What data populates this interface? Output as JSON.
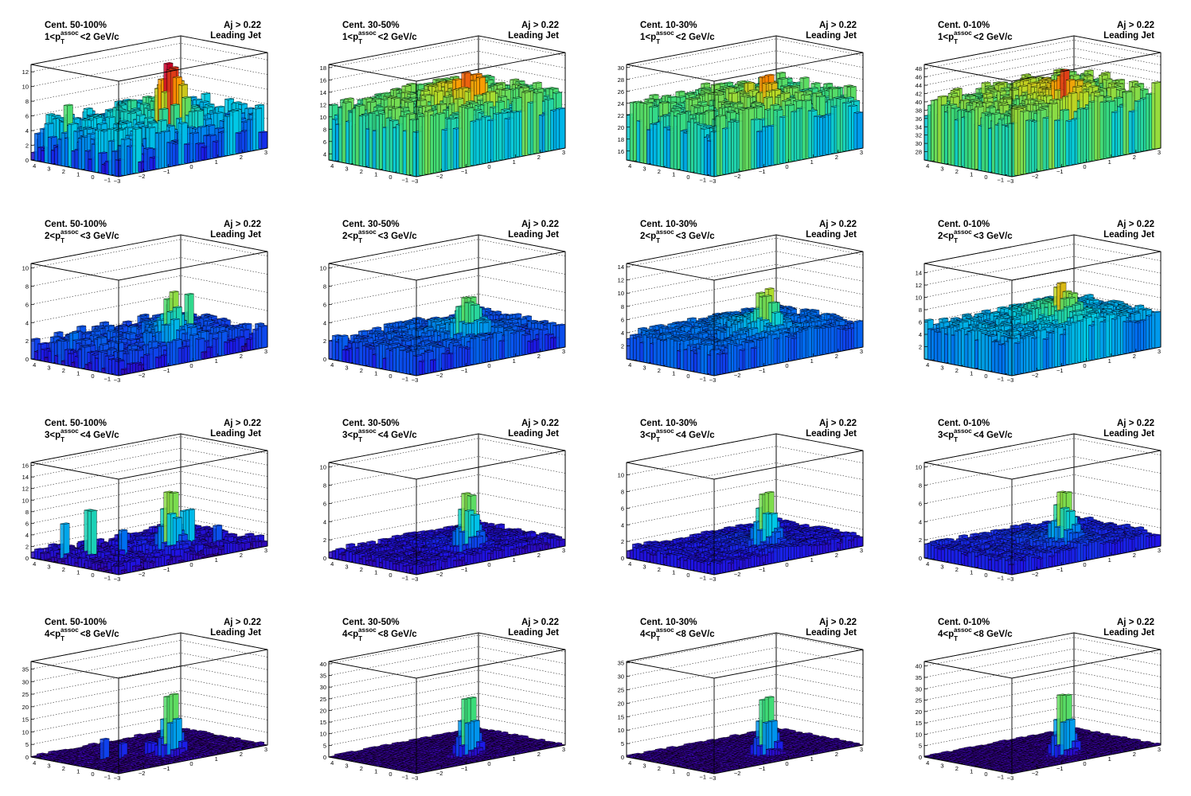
{
  "panel_common": {
    "aj_label": "Aj > 0.22",
    "jet_label": "Leading Jet",
    "pt_symbol": "p",
    "pt_sub": "T",
    "pt_sup": "assoc",
    "pt_unit": "GeV/c",
    "x_ticks": [
      "-3",
      "-2",
      "-1",
      "0",
      "1",
      "2",
      "3"
    ],
    "y_ticks": [
      "4",
      "3",
      "2",
      "1",
      "0",
      "-1"
    ]
  },
  "chart_data": [
    {
      "type": "lego",
      "row": 0,
      "col": 0,
      "centrality": "Cent. 50-100%",
      "pt_lo": "1",
      "pt_hi": "2",
      "zlim": [
        0,
        13
      ],
      "z_ticks": [
        0,
        2,
        4,
        6,
        8,
        10,
        12
      ],
      "pedestal": 3.5,
      "noise": 2.5,
      "peak": 11,
      "peak_width": 0.12,
      "ridge": 2.2,
      "spikes": [
        [
          -2.6,
          2.5,
          8
        ],
        [
          -2.2,
          3.2,
          4.5
        ],
        [
          0.3,
          1.5,
          3
        ],
        [
          1.4,
          0.8,
          3
        ],
        [
          2.1,
          -0.5,
          2.5
        ]
      ]
    },
    {
      "type": "lego",
      "row": 0,
      "col": 1,
      "centrality": "Cent. 30-50%",
      "pt_lo": "1",
      "pt_hi": "2",
      "zlim": [
        3,
        18.5
      ],
      "z_ticks": [
        4,
        6,
        8,
        10,
        12,
        14,
        16,
        18
      ],
      "pedestal": 11,
      "noise": 2.2,
      "peak": 15,
      "peak_width": 0.12,
      "ridge": 2.0,
      "spikes": [
        [
          -2.5,
          2.8,
          4
        ],
        [
          0.2,
          1.2,
          2.5
        ]
      ]
    },
    {
      "type": "lego",
      "row": 0,
      "col": 2,
      "centrality": "Cent. 10-30%",
      "pt_lo": "1",
      "pt_hi": "2",
      "zlim": [
        14.5,
        30.5
      ],
      "z_ticks": [
        16,
        18,
        20,
        22,
        24,
        26,
        28,
        30
      ],
      "pedestal": 22.5,
      "noise": 2.3,
      "peak": 27,
      "peak_width": 0.12,
      "ridge": 1.8,
      "spikes": []
    },
    {
      "type": "lego",
      "row": 0,
      "col": 3,
      "centrality": "Cent. 0-10%",
      "pt_lo": "1",
      "pt_hi": "2",
      "zlim": [
        26,
        49
      ],
      "z_ticks": [
        28,
        30,
        32,
        34,
        36,
        38,
        40,
        42,
        44,
        46,
        48
      ],
      "pedestal": 39,
      "noise": 3.0,
      "peak": 45,
      "peak_width": 0.12,
      "ridge": 2.5,
      "spikes": [
        [
          -2.8,
          3.6,
          7
        ],
        [
          -2.5,
          2.9,
          4
        ],
        [
          1.2,
          0.6,
          3
        ]
      ]
    },
    {
      "type": "lego",
      "row": 1,
      "col": 0,
      "centrality": "Cent. 50-100%",
      "pt_lo": "2",
      "pt_hi": "3",
      "zlim": [
        0,
        10.5
      ],
      "z_ticks": [
        0,
        2,
        4,
        6,
        8,
        10
      ],
      "pedestal": 1.5,
      "noise": 1.1,
      "peak": 6.5,
      "peak_width": 0.12,
      "ridge": 1.0,
      "spikes": [
        [
          -2.4,
          2.6,
          3.2
        ],
        [
          1.3,
          1.0,
          6
        ],
        [
          -2.0,
          1.4,
          2.8
        ],
        [
          1.8,
          -0.4,
          2.5
        ],
        [
          0.5,
          2.2,
          2.6
        ]
      ]
    },
    {
      "type": "lego",
      "row": 1,
      "col": 1,
      "centrality": "Cent. 30-50%",
      "pt_lo": "2",
      "pt_hi": "3",
      "zlim": [
        0,
        10.5
      ],
      "z_ticks": [
        0,
        2,
        4,
        6,
        8,
        10
      ],
      "pedestal": 2.0,
      "noise": 0.8,
      "peak": 6.5,
      "peak_width": 0.12,
      "ridge": 1.2,
      "spikes": [
        [
          2.6,
          -0.8,
          1.6
        ]
      ]
    },
    {
      "type": "lego",
      "row": 1,
      "col": 2,
      "centrality": "Cent. 10-30%",
      "pt_lo": "2",
      "pt_hi": "3",
      "zlim": [
        0,
        14.5
      ],
      "z_ticks": [
        2,
        4,
        6,
        8,
        10,
        12,
        14
      ],
      "pedestal": 3.6,
      "noise": 0.9,
      "peak": 9,
      "peak_width": 0.12,
      "ridge": 1.8,
      "spikes": []
    },
    {
      "type": "lego",
      "row": 1,
      "col": 3,
      "centrality": "Cent. 0-10%",
      "pt_lo": "2",
      "pt_hi": "3",
      "zlim": [
        0,
        15.5
      ],
      "z_ticks": [
        2,
        4,
        6,
        8,
        10,
        12,
        14
      ],
      "pedestal": 5.5,
      "noise": 1.0,
      "peak": 9.5,
      "peak_width": 0.12,
      "ridge": 2.5,
      "spikes": []
    },
    {
      "type": "lego",
      "row": 2,
      "col": 0,
      "centrality": "Cent. 50-100%",
      "pt_lo": "3",
      "pt_hi": "4",
      "zlim": [
        0,
        16.5
      ],
      "z_ticks": [
        0,
        2,
        4,
        6,
        8,
        10,
        12,
        14,
        16
      ],
      "pedestal": 0.8,
      "noise": 1.0,
      "peak": 11,
      "peak_width": 0.1,
      "ridge": 0.8,
      "spikes": [
        [
          -2.6,
          2.8,
          6.5
        ],
        [
          -2.0,
          2.2,
          8.5
        ],
        [
          -1.2,
          1.2,
          5
        ],
        [
          0.9,
          0.4,
          7
        ],
        [
          1.8,
          -0.3,
          4
        ],
        [
          1.5,
          1.6,
          3.5
        ],
        [
          -0.4,
          2.5,
          3
        ]
      ]
    },
    {
      "type": "lego",
      "row": 2,
      "col": 1,
      "centrality": "Cent. 30-50%",
      "pt_lo": "3",
      "pt_hi": "4",
      "zlim": [
        0,
        10.5
      ],
      "z_ticks": [
        0,
        2,
        4,
        6,
        8,
        10
      ],
      "pedestal": 0.8,
      "noise": 0.35,
      "peak": 7,
      "peak_width": 0.1,
      "ridge": 0.6,
      "spikes": []
    },
    {
      "type": "lego",
      "row": 2,
      "col": 2,
      "centrality": "Cent. 10-30%",
      "pt_lo": "3",
      "pt_hi": "4",
      "zlim": [
        0,
        11.5
      ],
      "z_ticks": [
        0,
        2,
        4,
        6,
        8,
        10
      ],
      "pedestal": 1.2,
      "noise": 0.35,
      "peak": 7.5,
      "peak_width": 0.1,
      "ridge": 0.8,
      "spikes": []
    },
    {
      "type": "lego",
      "row": 2,
      "col": 3,
      "centrality": "Cent. 0-10%",
      "pt_lo": "3",
      "pt_hi": "4",
      "zlim": [
        0,
        10.5
      ],
      "z_ticks": [
        0,
        2,
        4,
        6,
        8,
        10
      ],
      "pedestal": 1.4,
      "noise": 0.35,
      "peak": 7,
      "peak_width": 0.1,
      "ridge": 0.9,
      "spikes": []
    },
    {
      "type": "lego",
      "row": 3,
      "col": 0,
      "centrality": "Cent. 50-100%",
      "pt_lo": "4",
      "pt_hi": "8",
      "zlim": [
        0,
        38
      ],
      "z_ticks": [
        0,
        5,
        10,
        15,
        20,
        25,
        30,
        35
      ],
      "pedestal": 0.3,
      "noise": 0.6,
      "peak": 27,
      "peak_width": 0.09,
      "ridge": 0.3,
      "spikes": [
        [
          -1.8,
          1.6,
          8
        ],
        [
          -1.2,
          1.2,
          6
        ],
        [
          -0.4,
          0.8,
          5
        ]
      ]
    },
    {
      "type": "lego",
      "row": 3,
      "col": 1,
      "centrality": "Cent. 30-50%",
      "pt_lo": "4",
      "pt_hi": "8",
      "zlim": [
        0,
        41
      ],
      "z_ticks": [
        0,
        5,
        10,
        15,
        20,
        25,
        30,
        35,
        40
      ],
      "pedestal": 0.4,
      "noise": 0.4,
      "peak": 28,
      "peak_width": 0.09,
      "ridge": 0.3,
      "spikes": []
    },
    {
      "type": "lego",
      "row": 3,
      "col": 2,
      "centrality": "Cent. 10-30%",
      "pt_lo": "4",
      "pt_hi": "8",
      "zlim": [
        0,
        35.5
      ],
      "z_ticks": [
        0,
        5,
        10,
        15,
        20,
        25,
        30,
        35
      ],
      "pedestal": 0.4,
      "noise": 0.4,
      "peak": 24,
      "peak_width": 0.09,
      "ridge": 0.3,
      "spikes": []
    },
    {
      "type": "lego",
      "row": 3,
      "col": 3,
      "centrality": "Cent. 0-10%",
      "pt_lo": "4",
      "pt_hi": "8",
      "zlim": [
        0,
        42
      ],
      "z_ticks": [
        0,
        5,
        10,
        15,
        20,
        25,
        30,
        35,
        40
      ],
      "pedestal": 0.4,
      "noise": 0.4,
      "peak": 30,
      "peak_width": 0.09,
      "ridge": 0.3,
      "spikes": []
    }
  ]
}
